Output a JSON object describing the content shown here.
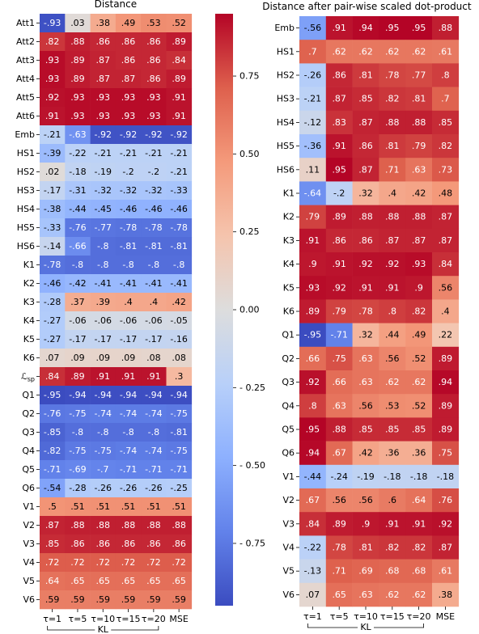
{
  "chart_data": [
    {
      "type": "heatmap",
      "title": "Distance",
      "columns": [
        "τ=1",
        "τ=5",
        "τ=10",
        "τ=15",
        "τ=20",
        "MSE"
      ],
      "column_group": {
        "label": "KL",
        "spans": [
          0,
          4
        ]
      },
      "rows": [
        "Att1",
        "Att2",
        "Att3",
        "Att4",
        "Att5",
        "Att6",
        "Emb",
        "HS1",
        "HS2",
        "HS3",
        "HS4",
        "HS5",
        "HS6",
        "K1",
        "K2",
        "K3",
        "K4",
        "K5",
        "K6",
        "ℒsp",
        "Q1",
        "Q2",
        "Q3",
        "Q4",
        "Q5",
        "Q6",
        "V1",
        "V2",
        "V3",
        "V4",
        "V5",
        "V6"
      ],
      "values": [
        [
          -0.93,
          0.03,
          0.38,
          0.49,
          0.53,
          0.52
        ],
        [
          0.82,
          0.88,
          0.86,
          0.86,
          0.86,
          0.89
        ],
        [
          0.93,
          0.89,
          0.87,
          0.86,
          0.86,
          0.84
        ],
        [
          0.93,
          0.89,
          0.87,
          0.87,
          0.86,
          0.89
        ],
        [
          0.92,
          0.93,
          0.93,
          0.93,
          0.93,
          0.91
        ],
        [
          0.91,
          0.93,
          0.93,
          0.93,
          0.93,
          0.91
        ],
        [
          -0.21,
          -0.63,
          -0.92,
          -0.92,
          -0.92,
          -0.92
        ],
        [
          -0.39,
          -0.22,
          -0.21,
          -0.21,
          -0.21,
          -0.21
        ],
        [
          0.02,
          -0.18,
          -0.19,
          -0.2,
          -0.2,
          -0.21
        ],
        [
          -0.17,
          -0.31,
          -0.32,
          -0.32,
          -0.32,
          -0.33
        ],
        [
          -0.38,
          -0.44,
          -0.45,
          -0.46,
          -0.46,
          -0.46
        ],
        [
          -0.33,
          -0.76,
          -0.77,
          -0.78,
          -0.78,
          -0.78
        ],
        [
          -0.14,
          -0.66,
          -0.8,
          -0.81,
          -0.81,
          -0.81
        ],
        [
          -0.78,
          -0.8,
          -0.8,
          -0.8,
          -0.8,
          -0.8
        ],
        [
          -0.46,
          -0.42,
          -0.41,
          -0.41,
          -0.41,
          -0.41
        ],
        [
          -0.28,
          0.37,
          0.39,
          0.4,
          0.4,
          0.42
        ],
        [
          -0.27,
          -0.06,
          -0.06,
          -0.06,
          -0.06,
          -0.05
        ],
        [
          -0.27,
          -0.17,
          -0.17,
          -0.17,
          -0.17,
          -0.16
        ],
        [
          0.07,
          0.09,
          0.09,
          0.09,
          0.08,
          0.08
        ],
        [
          0.84,
          0.89,
          0.91,
          0.91,
          0.91,
          0.3
        ],
        [
          -0.95,
          -0.94,
          -0.94,
          -0.94,
          -0.94,
          -0.94
        ],
        [
          -0.76,
          -0.75,
          -0.74,
          -0.74,
          -0.74,
          -0.75
        ],
        [
          -0.85,
          -0.8,
          -0.8,
          -0.8,
          -0.8,
          -0.81
        ],
        [
          -0.82,
          -0.75,
          -0.75,
          -0.74,
          -0.74,
          -0.75
        ],
        [
          -0.71,
          -0.69,
          -0.7,
          -0.71,
          -0.71,
          -0.71
        ],
        [
          -0.54,
          -0.28,
          -0.26,
          -0.26,
          -0.26,
          -0.25
        ],
        [
          0.5,
          0.51,
          0.51,
          0.51,
          0.51,
          0.51
        ],
        [
          0.87,
          0.88,
          0.88,
          0.88,
          0.88,
          0.88
        ],
        [
          0.85,
          0.86,
          0.86,
          0.86,
          0.86,
          0.86
        ],
        [
          0.72,
          0.72,
          0.72,
          0.72,
          0.72,
          0.72
        ],
        [
          0.64,
          0.65,
          0.65,
          0.65,
          0.65,
          0.65
        ],
        [
          0.59,
          0.59,
          0.59,
          0.59,
          0.59,
          0.59
        ]
      ],
      "colorbar": {
        "colormap": "coolwarm",
        "range": [
          -0.95,
          0.95
        ],
        "ticks": [
          0.75,
          0.5,
          0.25,
          0.0,
          -0.25,
          -0.5,
          -0.75
        ],
        "tick_labels": [
          "0.75",
          "0.50",
          "0.25",
          "0.00",
          "0.25",
          "0.50",
          "0.75"
        ]
      }
    },
    {
      "type": "heatmap",
      "title": "Distance after pair-wise scaled dot-product",
      "columns": [
        "τ=1",
        "τ=5",
        "τ=10",
        "τ=15",
        "τ=20",
        "MSE"
      ],
      "column_group": {
        "label": "KL",
        "spans": [
          0,
          4
        ]
      },
      "rows": [
        "Emb",
        "HS1",
        "HS2",
        "HS3",
        "HS4",
        "HS5",
        "HS6",
        "K1",
        "K2",
        "K3",
        "K4",
        "K5",
        "K6",
        "Q1",
        "Q2",
        "Q3",
        "Q4",
        "Q5",
        "Q6",
        "V1",
        "V2",
        "V3",
        "V4",
        "V5",
        "V6"
      ],
      "values": [
        [
          -0.56,
          0.91,
          0.94,
          0.95,
          0.95,
          0.88
        ],
        [
          0.7,
          0.62,
          0.62,
          0.62,
          0.62,
          0.61
        ],
        [
          -0.26,
          0.86,
          0.81,
          0.78,
          0.77,
          0.8
        ],
        [
          -0.21,
          0.87,
          0.85,
          0.82,
          0.81,
          0.7
        ],
        [
          -0.12,
          0.83,
          0.87,
          0.88,
          0.88,
          0.85
        ],
        [
          -0.36,
          0.91,
          0.86,
          0.81,
          0.79,
          0.82
        ],
        [
          0.11,
          0.95,
          0.87,
          0.71,
          0.63,
          0.73
        ],
        [
          -0.64,
          -0.2,
          0.32,
          0.4,
          0.42,
          0.48
        ],
        [
          0.79,
          0.89,
          0.88,
          0.88,
          0.88,
          0.87
        ],
        [
          0.91,
          0.86,
          0.86,
          0.87,
          0.87,
          0.87
        ],
        [
          0.9,
          0.91,
          0.92,
          0.92,
          0.93,
          0.84
        ],
        [
          0.93,
          0.92,
          0.91,
          0.91,
          0.9,
          0.56
        ],
        [
          0.89,
          0.79,
          0.78,
          0.8,
          0.82,
          0.4
        ],
        [
          -0.95,
          -0.71,
          0.32,
          0.44,
          0.49,
          0.22
        ],
        [
          0.66,
          0.75,
          0.63,
          0.56,
          0.52,
          0.89
        ],
        [
          0.92,
          0.66,
          0.63,
          0.62,
          0.62,
          0.94
        ],
        [
          0.8,
          0.63,
          0.56,
          0.53,
          0.52,
          0.89
        ],
        [
          0.95,
          0.88,
          0.85,
          0.85,
          0.85,
          0.89
        ],
        [
          0.94,
          0.67,
          0.42,
          0.36,
          0.36,
          0.75
        ],
        [
          -0.44,
          -0.24,
          -0.19,
          -0.18,
          -0.18,
          -0.18
        ],
        [
          0.67,
          0.56,
          0.56,
          0.6,
          0.64,
          0.76
        ],
        [
          0.84,
          0.89,
          0.9,
          0.91,
          0.91,
          0.92
        ],
        [
          -0.22,
          0.78,
          0.81,
          0.82,
          0.82,
          0.87
        ],
        [
          -0.13,
          0.71,
          0.69,
          0.68,
          0.68,
          0.61
        ],
        [
          0.07,
          0.65,
          0.63,
          0.62,
          0.62,
          0.38
        ]
      ]
    }
  ]
}
